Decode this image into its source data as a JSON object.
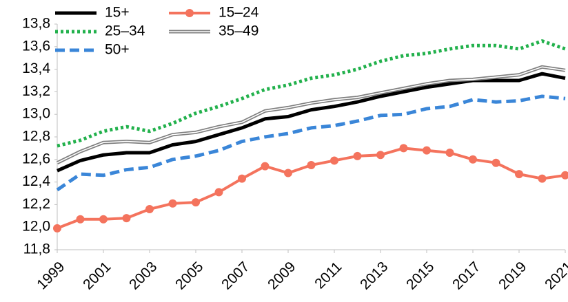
{
  "chart_data": {
    "type": "line",
    "x": [
      1999,
      2000,
      2001,
      2002,
      2003,
      2004,
      2005,
      2006,
      2007,
      2008,
      2009,
      2010,
      2011,
      2012,
      2013,
      2014,
      2015,
      2016,
      2017,
      2018,
      2019,
      2020,
      2021
    ],
    "series": [
      {
        "name": "15+",
        "color": "#000000",
        "style": "solid",
        "values": [
          12.5,
          12.59,
          12.64,
          12.66,
          12.66,
          12.73,
          12.76,
          12.82,
          12.88,
          12.96,
          12.98,
          13.04,
          13.07,
          13.11,
          13.16,
          13.2,
          13.24,
          13.27,
          13.3,
          13.3,
          13.3,
          13.36,
          13.32
        ]
      },
      {
        "name": "15–24",
        "color": "#f4735d",
        "style": "marker",
        "values": [
          11.99,
          12.07,
          12.07,
          12.08,
          12.16,
          12.21,
          12.22,
          12.31,
          12.43,
          12.54,
          12.48,
          12.55,
          12.59,
          12.63,
          12.64,
          12.7,
          12.68,
          12.66,
          12.6,
          12.57,
          12.47,
          12.43,
          12.46
        ]
      },
      {
        "name": "25–34",
        "color": "#22b14c",
        "style": "dot",
        "values": [
          12.72,
          12.77,
          12.85,
          12.89,
          12.85,
          12.92,
          13.01,
          13.07,
          13.14,
          13.22,
          13.26,
          13.32,
          13.35,
          13.4,
          13.47,
          13.52,
          13.54,
          13.58,
          13.61,
          13.61,
          13.58,
          13.65,
          13.58
        ]
      },
      {
        "name": "35–49",
        "color": "#7f7f7f",
        "style": "double",
        "values": [
          12.57,
          12.67,
          12.75,
          12.76,
          12.75,
          12.82,
          12.84,
          12.89,
          12.93,
          13.03,
          13.06,
          13.1,
          13.13,
          13.15,
          13.19,
          13.23,
          13.27,
          13.3,
          13.31,
          13.33,
          13.35,
          13.42,
          13.39
        ]
      },
      {
        "name": "50+",
        "color": "#3a86d8",
        "style": "dash",
        "values": [
          12.33,
          12.47,
          12.46,
          12.51,
          12.53,
          12.6,
          12.63,
          12.68,
          12.76,
          12.8,
          12.83,
          12.88,
          12.9,
          12.94,
          12.99,
          13.0,
          13.05,
          13.07,
          13.13,
          13.11,
          13.12,
          13.16,
          13.14
        ]
      }
    ],
    "xlim": [
      1999,
      2021
    ],
    "xticks": [
      1999,
      2001,
      2003,
      2005,
      2007,
      2009,
      2011,
      2013,
      2015,
      2017,
      2019,
      2021
    ],
    "ylim": [
      11.8,
      13.8
    ],
    "yticks": [
      {
        "value": 11.8,
        "label": "11,8"
      },
      {
        "value": 12.0,
        "label": "12,0"
      },
      {
        "value": 12.2,
        "label": "12,2"
      },
      {
        "value": 12.4,
        "label": "12,4"
      },
      {
        "value": 12.6,
        "label": "12,6"
      },
      {
        "value": 12.8,
        "label": "12,8"
      },
      {
        "value": 13.0,
        "label": "13,0"
      },
      {
        "value": 13.2,
        "label": "13,2"
      },
      {
        "value": 13.4,
        "label": "13,4"
      },
      {
        "value": 13.6,
        "label": "13,6"
      },
      {
        "value": 13.8,
        "label": "13,8"
      }
    ],
    "legend": "top-left"
  }
}
